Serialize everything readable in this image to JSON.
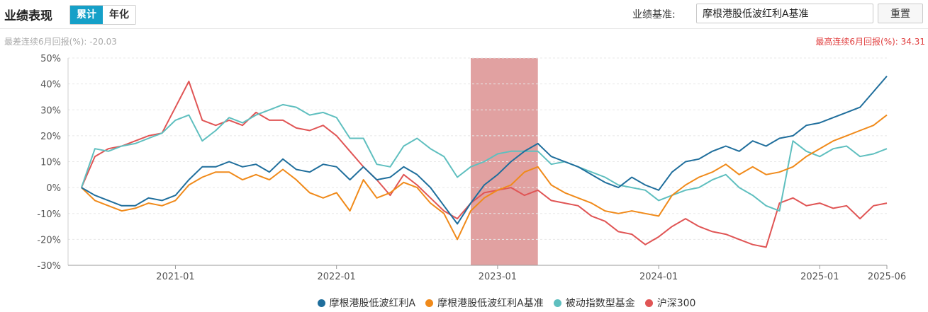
{
  "header": {
    "title": "业绩表现",
    "tabs": [
      {
        "label": "累计",
        "active": true
      },
      {
        "label": "年化",
        "active": false
      }
    ],
    "benchmark_label": "业绩基准:",
    "benchmark_value": "摩根港股低波红利A基准",
    "reset_label": "重置"
  },
  "notes": {
    "worst": "最差连续6月回报(%): -20.03",
    "best": "最高连续6月回报(%): 34.31"
  },
  "colors": {
    "fund": "#1f6e9c",
    "benchmark": "#f08a1a",
    "category": "#5fbfbf",
    "hs300": "#e05555",
    "highlight": "#d98a8a",
    "accent": "#15a0c8"
  },
  "chart_data": {
    "type": "line",
    "x_start": "2020-06",
    "x_end": "2025-06",
    "x_ticks": [
      "2021-01",
      "2022-01",
      "2023-01",
      "2024-01",
      "2025-01",
      "2025-06"
    ],
    "ylim": [
      -30,
      50
    ],
    "y_ticks": [
      "50%",
      "40%",
      "30%",
      "20%",
      "10%",
      "0%",
      "-10%",
      "-20%",
      "-30%"
    ],
    "highlight_range": [
      "2022-11",
      "2023-04"
    ],
    "series": [
      {
        "name": "摩根港股低波红利A",
        "color": "#1f6e9c",
        "x": [
          "2020-06",
          "2020-07",
          "2020-08",
          "2020-09",
          "2020-10",
          "2020-11",
          "2020-12",
          "2021-01",
          "2021-02",
          "2021-03",
          "2021-04",
          "2021-05",
          "2021-06",
          "2021-07",
          "2021-08",
          "2021-09",
          "2021-10",
          "2021-11",
          "2021-12",
          "2022-01",
          "2022-02",
          "2022-03",
          "2022-04",
          "2022-05",
          "2022-06",
          "2022-07",
          "2022-08",
          "2022-09",
          "2022-10",
          "2022-11",
          "2022-12",
          "2023-01",
          "2023-02",
          "2023-03",
          "2023-04",
          "2023-05",
          "2023-06",
          "2023-07",
          "2023-08",
          "2023-09",
          "2023-10",
          "2023-11",
          "2023-12",
          "2024-01",
          "2024-02",
          "2024-03",
          "2024-04",
          "2024-05",
          "2024-06",
          "2024-07",
          "2024-08",
          "2024-09",
          "2024-10",
          "2024-11",
          "2024-12",
          "2025-01",
          "2025-02",
          "2025-03",
          "2025-04",
          "2025-05",
          "2025-06"
        ],
        "values": [
          0,
          -3,
          -5,
          -7,
          -7,
          -4,
          -5,
          -3,
          3,
          8,
          8,
          10,
          8,
          9,
          6,
          11,
          7,
          6,
          9,
          8,
          3,
          8,
          3,
          4,
          8,
          5,
          0,
          -7,
          -14,
          -6,
          1,
          5,
          10,
          14,
          17,
          12,
          10,
          8,
          5,
          2,
          0,
          4,
          1,
          -1,
          6,
          10,
          11,
          14,
          16,
          14,
          18,
          16,
          19,
          20,
          24,
          25,
          27,
          29,
          31,
          37,
          43
        ]
      },
      {
        "name": "摩根港股低波红利A基准",
        "color": "#f08a1a",
        "x": [
          "2020-06",
          "2020-07",
          "2020-08",
          "2020-09",
          "2020-10",
          "2020-11",
          "2020-12",
          "2021-01",
          "2021-02",
          "2021-03",
          "2021-04",
          "2021-05",
          "2021-06",
          "2021-07",
          "2021-08",
          "2021-09",
          "2021-10",
          "2021-11",
          "2021-12",
          "2022-01",
          "2022-02",
          "2022-03",
          "2022-04",
          "2022-05",
          "2022-06",
          "2022-07",
          "2022-08",
          "2022-09",
          "2022-10",
          "2022-11",
          "2022-12",
          "2023-01",
          "2023-02",
          "2023-03",
          "2023-04",
          "2023-05",
          "2023-06",
          "2023-07",
          "2023-08",
          "2023-09",
          "2023-10",
          "2023-11",
          "2023-12",
          "2024-01",
          "2024-02",
          "2024-03",
          "2024-04",
          "2024-05",
          "2024-06",
          "2024-07",
          "2024-08",
          "2024-09",
          "2024-10",
          "2024-11",
          "2024-12",
          "2025-01",
          "2025-02",
          "2025-03",
          "2025-04",
          "2025-05",
          "2025-06"
        ],
        "values": [
          0,
          -5,
          -7,
          -9,
          -8,
          -6,
          -7,
          -5,
          1,
          4,
          6,
          6,
          3,
          5,
          3,
          7,
          3,
          -2,
          -4,
          -2,
          -9,
          3,
          -4,
          -2,
          2,
          0,
          -6,
          -10,
          -20,
          -9,
          -4,
          -1,
          1,
          6,
          8,
          1,
          -2,
          -4,
          -6,
          -9,
          -10,
          -9,
          -10,
          -11,
          -3,
          1,
          4,
          6,
          9,
          5,
          8,
          5,
          6,
          8,
          12,
          15,
          18,
          20,
          22,
          24,
          28
        ]
      },
      {
        "name": "被动指数型基金",
        "color": "#5fbfbf",
        "x": [
          "2020-06",
          "2020-07",
          "2020-08",
          "2020-09",
          "2020-10",
          "2020-11",
          "2020-12",
          "2021-01",
          "2021-02",
          "2021-03",
          "2021-04",
          "2021-05",
          "2021-06",
          "2021-07",
          "2021-08",
          "2021-09",
          "2021-10",
          "2021-11",
          "2021-12",
          "2022-01",
          "2022-02",
          "2022-03",
          "2022-04",
          "2022-05",
          "2022-06",
          "2022-07",
          "2022-08",
          "2022-09",
          "2022-10",
          "2022-11",
          "2022-12",
          "2023-01",
          "2023-02",
          "2023-03",
          "2023-04",
          "2023-05",
          "2023-06",
          "2023-07",
          "2023-08",
          "2023-09",
          "2023-10",
          "2023-11",
          "2023-12",
          "2024-01",
          "2024-02",
          "2024-03",
          "2024-04",
          "2024-05",
          "2024-06",
          "2024-07",
          "2024-08",
          "2024-09",
          "2024-10",
          "2024-11",
          "2024-12",
          "2025-01",
          "2025-02",
          "2025-03",
          "2025-04",
          "2025-05",
          "2025-06"
        ],
        "values": [
          0,
          15,
          14,
          16,
          17,
          19,
          21,
          26,
          28,
          18,
          22,
          27,
          25,
          28,
          30,
          32,
          31,
          28,
          29,
          27,
          19,
          19,
          9,
          8,
          16,
          19,
          15,
          12,
          4,
          8,
          10,
          13,
          14,
          14,
          14,
          9,
          10,
          8,
          6,
          4,
          1,
          0,
          -1,
          -5,
          -3,
          -1,
          0,
          3,
          5,
          0,
          -3,
          -7,
          -9,
          18,
          14,
          12,
          15,
          16,
          12,
          13,
          15
        ]
      },
      {
        "name": "沪深300",
        "color": "#e05555",
        "x": [
          "2020-06",
          "2020-07",
          "2020-08",
          "2020-09",
          "2020-10",
          "2020-11",
          "2020-12",
          "2021-01",
          "2021-02",
          "2021-03",
          "2021-04",
          "2021-05",
          "2021-06",
          "2021-07",
          "2021-08",
          "2021-09",
          "2021-10",
          "2021-11",
          "2021-12",
          "2022-01",
          "2022-02",
          "2022-03",
          "2022-04",
          "2022-05",
          "2022-06",
          "2022-07",
          "2022-08",
          "2022-09",
          "2022-10",
          "2022-11",
          "2022-12",
          "2023-01",
          "2023-02",
          "2023-03",
          "2023-04",
          "2023-05",
          "2023-06",
          "2023-07",
          "2023-08",
          "2023-09",
          "2023-10",
          "2023-11",
          "2023-12",
          "2024-01",
          "2024-02",
          "2024-03",
          "2024-04",
          "2024-05",
          "2024-06",
          "2024-07",
          "2024-08",
          "2024-09",
          "2024-10",
          "2024-11",
          "2024-12",
          "2025-01",
          "2025-02",
          "2025-03",
          "2025-04",
          "2025-05",
          "2025-06"
        ],
        "values": [
          0,
          12,
          15,
          16,
          18,
          20,
          21,
          31,
          41,
          26,
          24,
          26,
          24,
          29,
          26,
          26,
          23,
          22,
          24,
          20,
          14,
          8,
          3,
          -3,
          5,
          1,
          -4,
          -9,
          -12,
          -6,
          -2,
          -1,
          0,
          -3,
          -1,
          -5,
          -6,
          -7,
          -11,
          -13,
          -17,
          -18,
          -22,
          -19,
          -15,
          -12,
          -15,
          -17,
          -18,
          -20,
          -22,
          -23,
          -6,
          -4,
          -7,
          -6,
          -8,
          -7,
          -12,
          -7,
          -6
        ]
      }
    ]
  }
}
